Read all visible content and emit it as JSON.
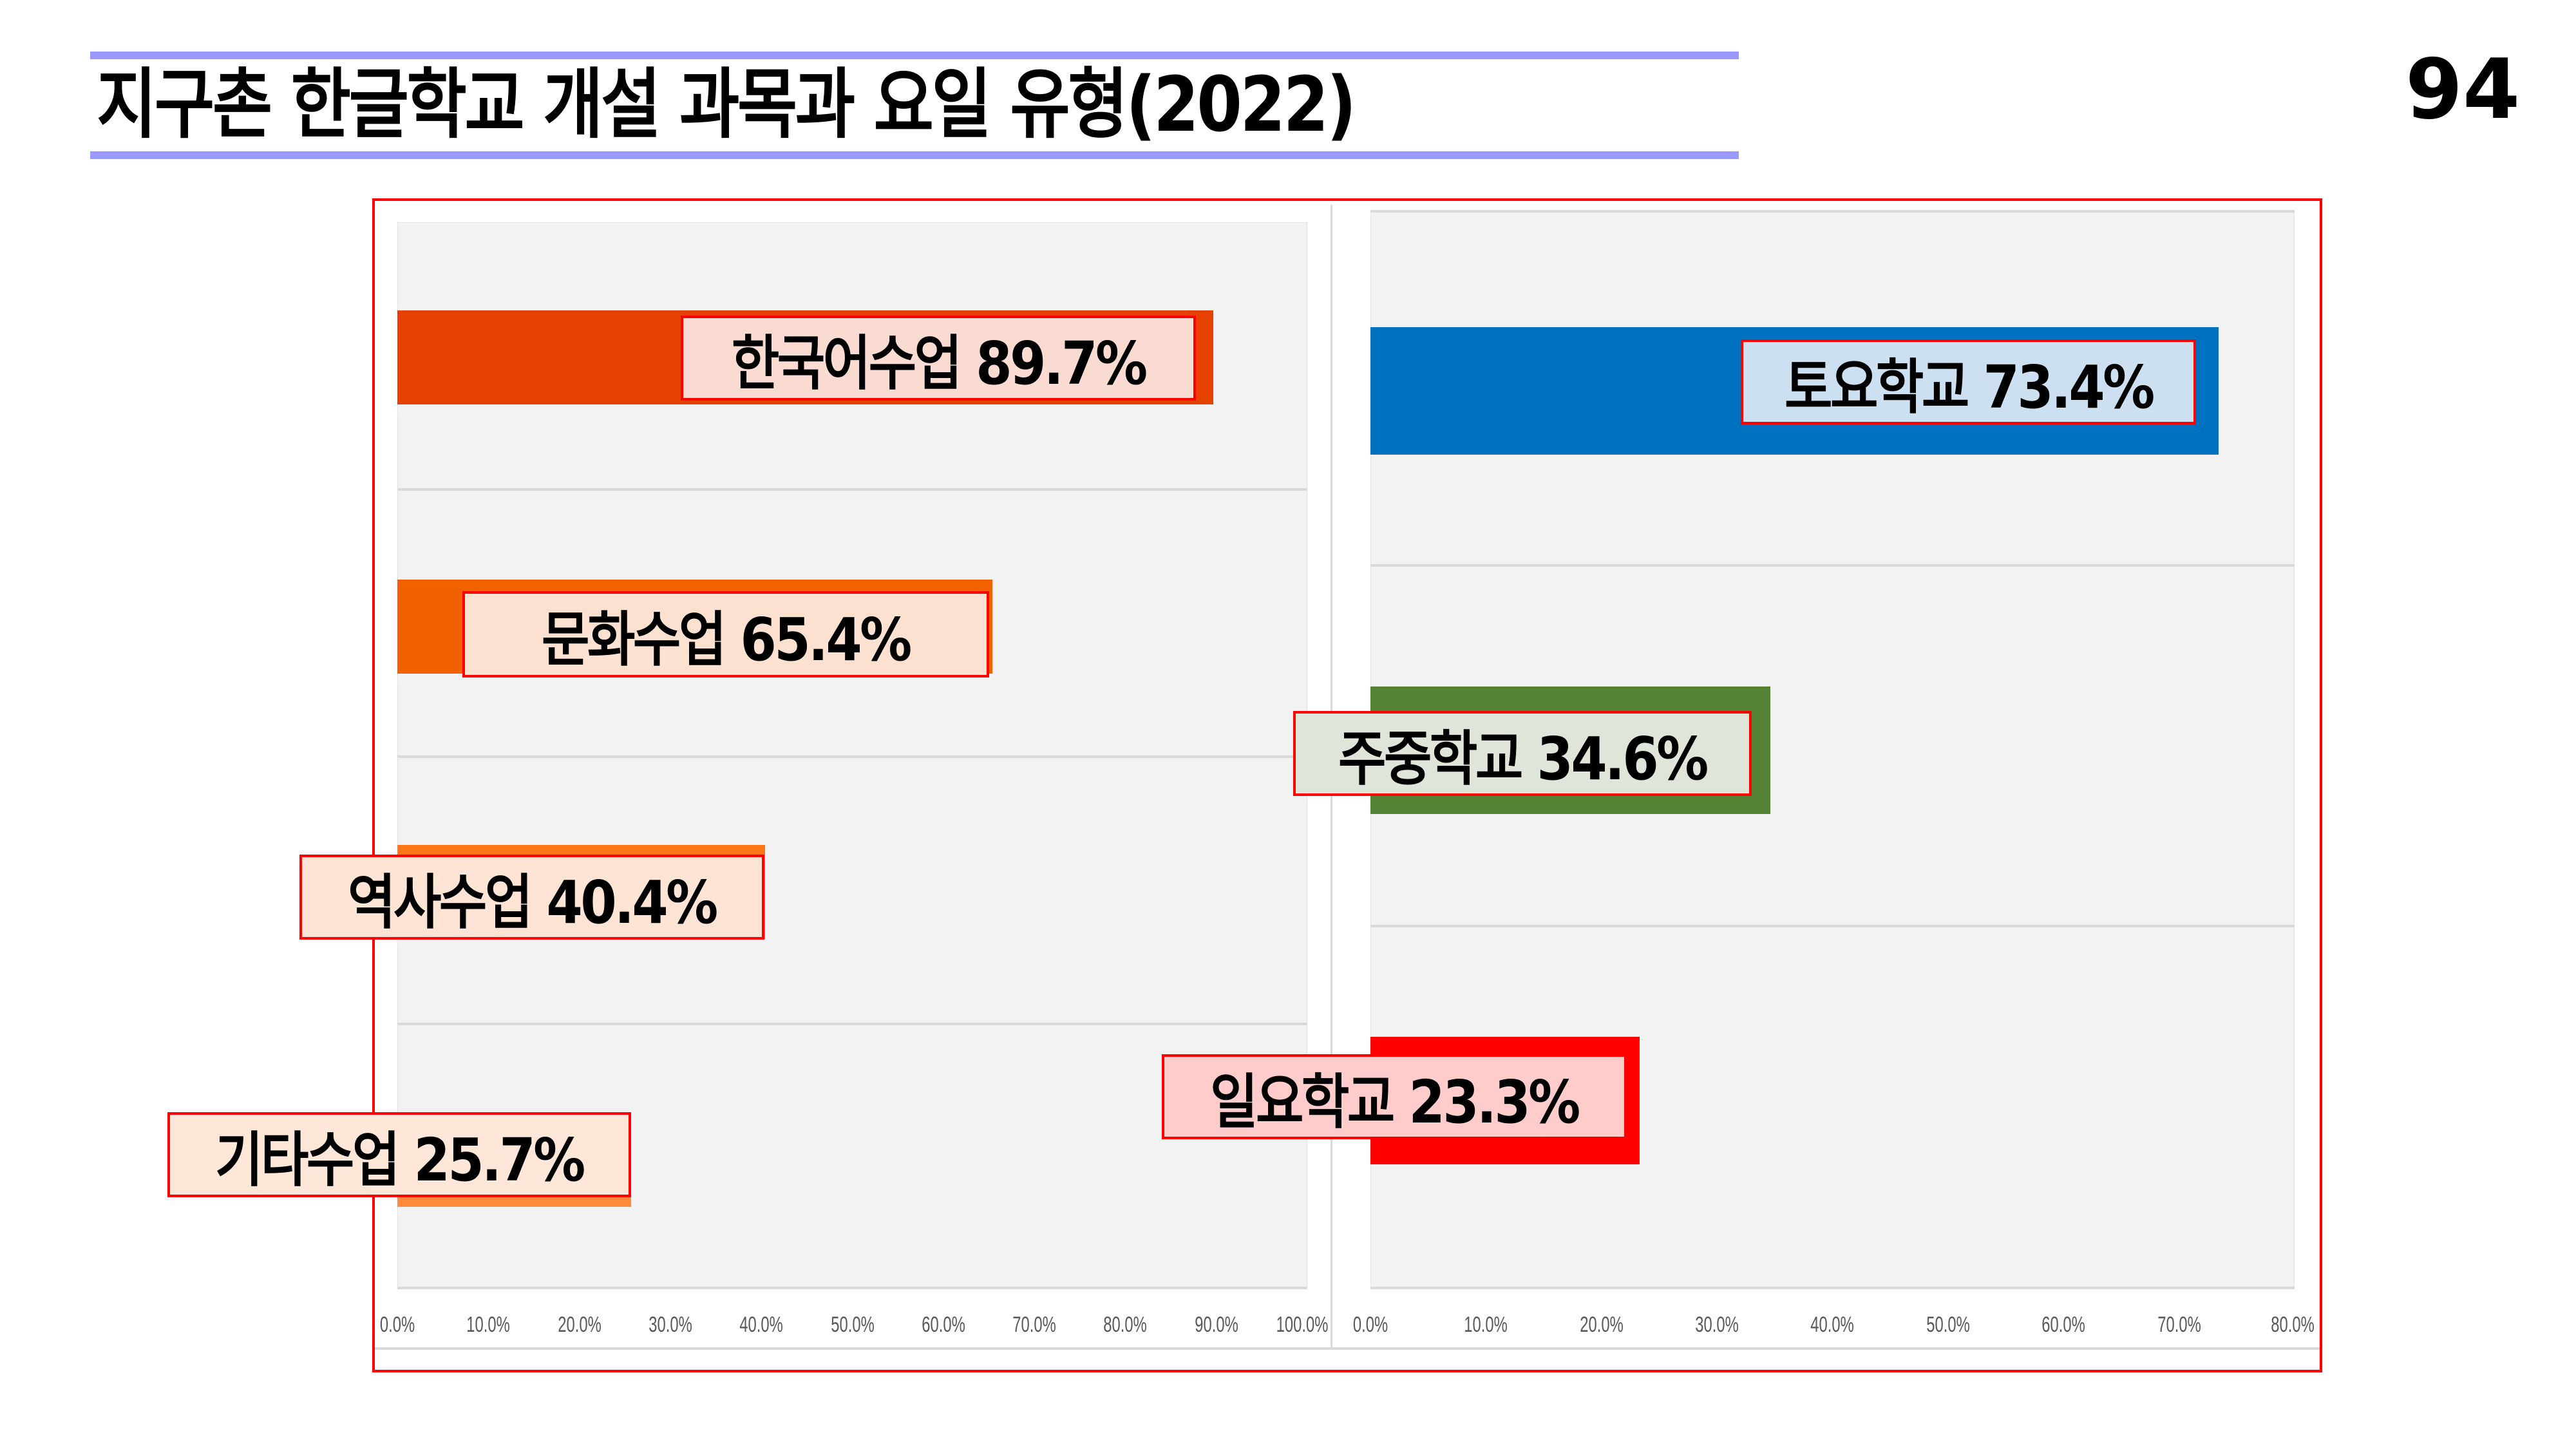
{
  "slide": {
    "title": "지구촌 한글학교 개설 과목과 요일 유형(2022)",
    "page_number": "94",
    "accent_color": "#9999ff",
    "frame_color": "#ff0000"
  },
  "left_chart": {
    "ticks": [
      "0.0%",
      "10.0%",
      "20.0%",
      "30.0%",
      "40.0%",
      "50.0%",
      "60.0%",
      "70.0%",
      "80.0%",
      "90.0%",
      "100.0%"
    ],
    "bars": [
      {
        "label": "한국어수업 89.7%",
        "value": 89.7,
        "color": "#e64100",
        "box_color": "#fadbd2"
      },
      {
        "label": "문화수업 65.4%",
        "value": 65.4,
        "color": "#f26100",
        "box_color": "#fde1d0"
      },
      {
        "label": "역사수업 40.4%",
        "value": 40.4,
        "color": "#ff7518",
        "box_color": "#fee4d4"
      },
      {
        "label": "기타수업 25.7%",
        "value": 25.7,
        "color": "#ff8c3a",
        "box_color": "#fee6d8"
      }
    ]
  },
  "right_chart": {
    "ticks": [
      "0.0%",
      "10.0%",
      "20.0%",
      "30.0%",
      "40.0%",
      "50.0%",
      "60.0%",
      "70.0%",
      "80.0%"
    ],
    "bars": [
      {
        "label": "토요학교 73.4%",
        "value": 73.4,
        "color": "#0070c0",
        "box_color": "#cde0f1"
      },
      {
        "label": "주중학교 34.6%",
        "value": 34.6,
        "color": "#548235",
        "box_color": "#dfe6d9"
      },
      {
        "label": "일요학교 23.3%",
        "value": 23.3,
        "color": "#ff0000",
        "box_color": "#ffcccc"
      }
    ]
  },
  "chart_data": [
    {
      "type": "bar",
      "orientation": "horizontal",
      "title": "개설 과목",
      "categories": [
        "한국어수업",
        "문화수업",
        "역사수업",
        "기타수업"
      ],
      "values": [
        89.7,
        65.4,
        40.4,
        25.7
      ],
      "unit": "%",
      "xlabel": "",
      "ylabel": "",
      "xlim": [
        0,
        100
      ],
      "xticks": [
        "0.0%",
        "10.0%",
        "20.0%",
        "30.0%",
        "40.0%",
        "50.0%",
        "60.0%",
        "70.0%",
        "80.0%",
        "90.0%",
        "100.0%"
      ],
      "grid": true,
      "legend": "none",
      "data_labels": [
        "한국어수업 89.7%",
        "문화수업 65.4%",
        "역사수업 40.4%",
        "기타수업 25.7%"
      ]
    },
    {
      "type": "bar",
      "orientation": "horizontal",
      "title": "요일 유형",
      "categories": [
        "토요학교",
        "주중학교",
        "일요학교"
      ],
      "values": [
        73.4,
        34.6,
        23.3
      ],
      "unit": "%",
      "xlabel": "",
      "ylabel": "",
      "xlim": [
        0,
        80
      ],
      "xticks": [
        "0.0%",
        "10.0%",
        "20.0%",
        "30.0%",
        "40.0%",
        "50.0%",
        "60.0%",
        "70.0%",
        "80.0%"
      ],
      "grid": true,
      "legend": "none",
      "data_labels": [
        "토요학교 73.4%",
        "주중학교 34.6%",
        "일요학교 23.3%"
      ]
    }
  ]
}
